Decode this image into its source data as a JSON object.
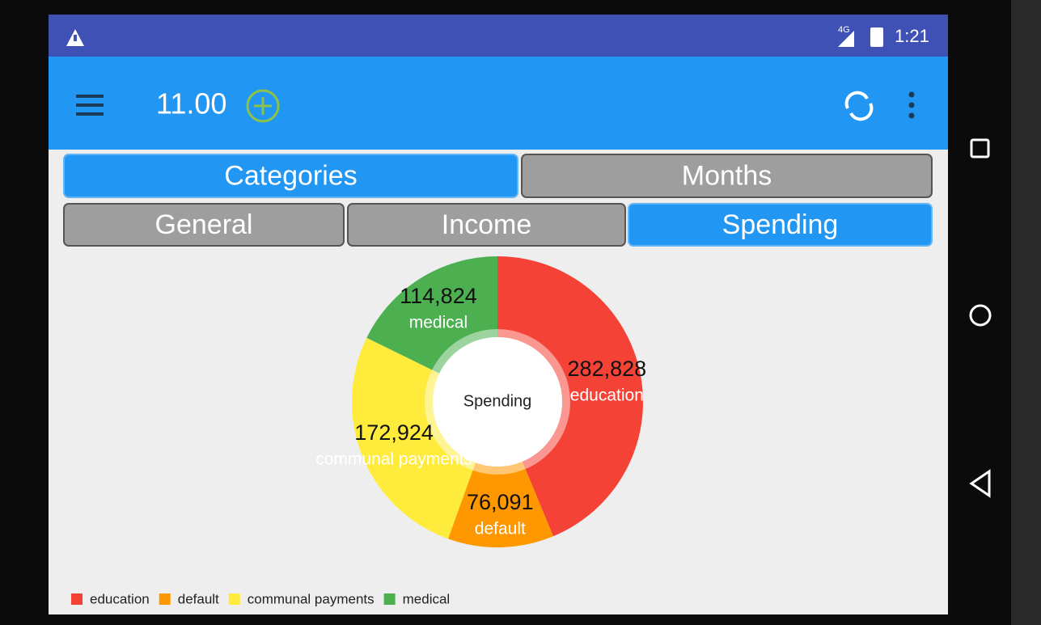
{
  "status_bar": {
    "network": "4G",
    "time": "1:21"
  },
  "toolbar": {
    "balance": "11.00"
  },
  "tabs": {
    "primary": [
      "Categories",
      "Months"
    ],
    "secondary": [
      "General",
      "Income",
      "Spending"
    ]
  },
  "chart_data": {
    "type": "pie",
    "title": "Spending",
    "categories": [
      "education",
      "default",
      "communal payments",
      "medical"
    ],
    "values": [
      282828,
      76091,
      172924,
      114824
    ],
    "value_labels": [
      "282,828",
      "76,091",
      "172,924",
      "114,824"
    ],
    "colors": [
      "#f44336",
      "#ff9800",
      "#ffeb3b",
      "#4caf50"
    ],
    "donut": true,
    "legend": "bottom-left"
  }
}
